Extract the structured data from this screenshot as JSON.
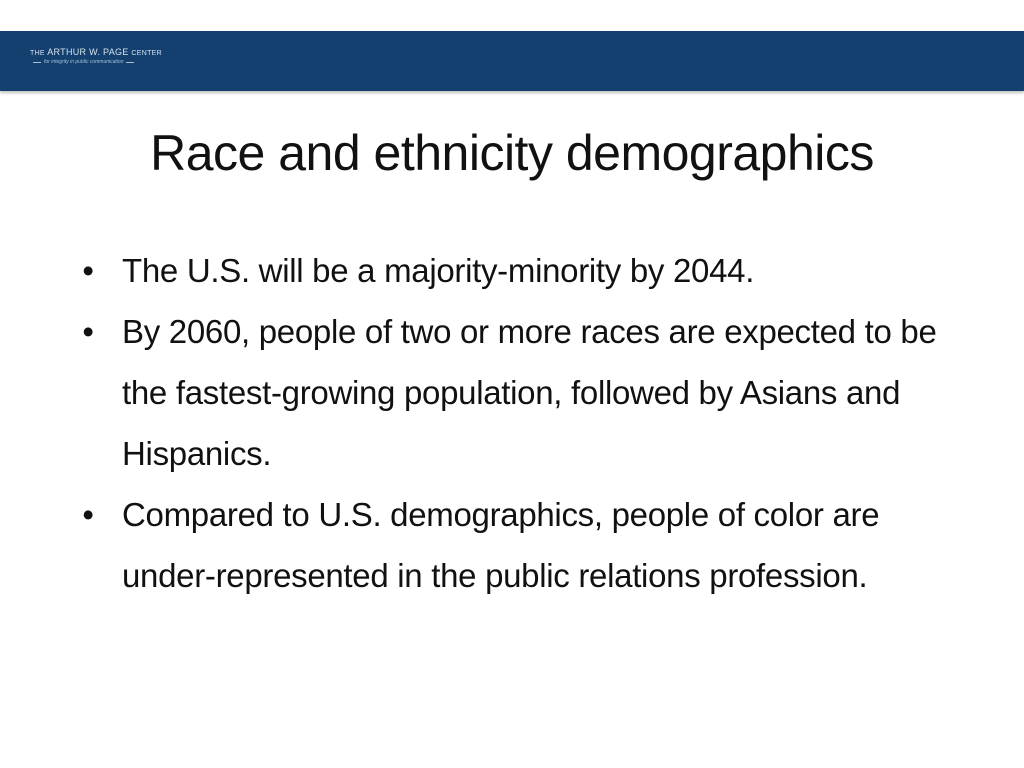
{
  "header": {
    "logo": {
      "the": "THE",
      "name": "ARTHUR W. PAGE",
      "center": "CENTER",
      "tagline": "for integrity in public communication"
    }
  },
  "slide": {
    "title": "Race and ethnicity demographics",
    "bullet_glyph": "•",
    "bullets": [
      "The U.S. will be a majority-minority by 2044.",
      "By 2060, people of two or more races are expected to be the fastest-growing population, followed by Asians and Hispanics.",
      "Compared to U.S. demographics, people of color are under-represented in the public relations profession."
    ]
  },
  "colors": {
    "header_band": "#13406f",
    "text": "#111111",
    "background": "#ffffff"
  }
}
